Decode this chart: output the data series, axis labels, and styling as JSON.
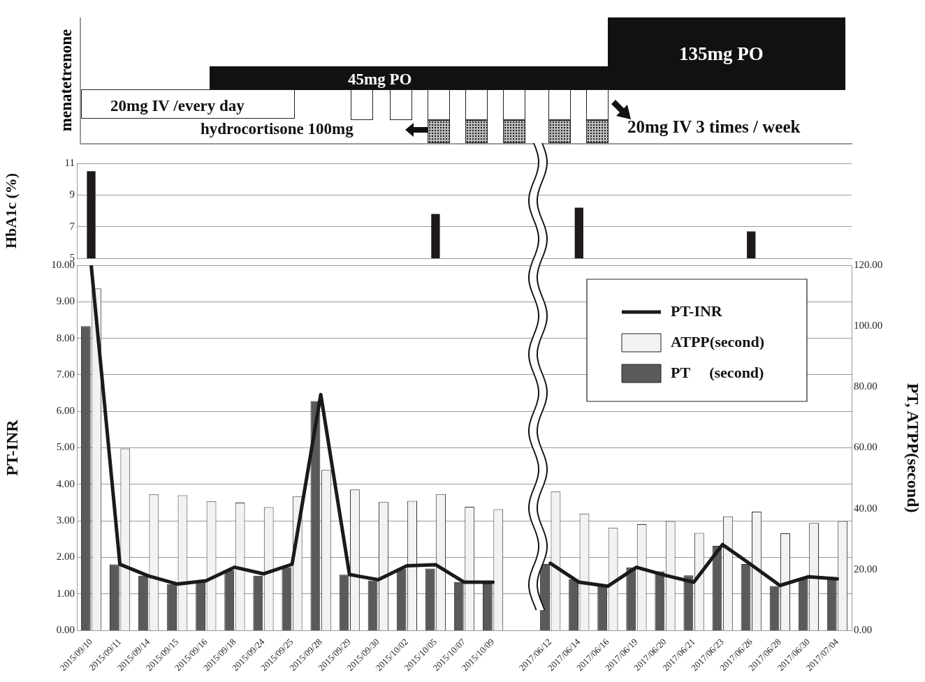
{
  "chart_data": [
    {
      "type": "other",
      "ylabel": "menatetrenone",
      "annotations": [
        "20mg IV /every day",
        "45mg PO",
        "135mg PO",
        "hydrocortisone 100mg",
        "20mg IV 3 times / week"
      ]
    },
    {
      "type": "bar",
      "ylabel": "HbA1c (%)",
      "categories": [
        "2015/09/10",
        "2015/09/11",
        "2015/09/14",
        "2015/09/15",
        "2015/09/16",
        "2015/09/18",
        "2015/09/24",
        "2015/09/25",
        "2015/09/28",
        "2015/09/29",
        "2015/09/30",
        "2015/10/02",
        "2015/10/05",
        "2015/10/07",
        "2015/10/09",
        null,
        "2017/06/12",
        "2017/06/14",
        "2017/06/16",
        "2017/06/19",
        "2017/06/20",
        "2017/06/21",
        "2017/06/23",
        "2017/06/26",
        "2017/06/28",
        "2017/06/30",
        "2017/07/04"
      ],
      "values": [
        10.5,
        null,
        null,
        null,
        null,
        null,
        null,
        null,
        null,
        null,
        null,
        null,
        7.8,
        null,
        null,
        null,
        null,
        8.2,
        null,
        null,
        null,
        null,
        null,
        6.7,
        null,
        null,
        null
      ],
      "color": "#1e1a1a",
      "ylim": [
        5,
        11
      ],
      "yticks": [
        5,
        7,
        9,
        11
      ],
      "grid": "y",
      "tick_labels": "y"
    },
    {
      "type": "bar",
      "ylabel": "PT-INR",
      "y2label": "PT, ATPP(second)",
      "categories": [
        "2015/09/10",
        "2015/09/11",
        "2015/09/14",
        "2015/09/15",
        "2015/09/16",
        "2015/09/18",
        "2015/09/24",
        "2015/09/25",
        "2015/09/28",
        "2015/09/29",
        "2015/09/30",
        "2015/10/02",
        "2015/10/05",
        "2015/10/07",
        "2015/10/09",
        null,
        "2017/06/12",
        "2017/06/14",
        "2017/06/16",
        "2017/06/19",
        "2017/06/20",
        "2017/06/21",
        "2017/06/23",
        "2017/06/26",
        "2017/06/28",
        "2017/06/30",
        "2017/07/04"
      ],
      "series": [
        {
          "name": "PT-INR",
          "type": "line",
          "color": "#1a1a1a",
          "values": [
            10.0,
            1.81,
            1.49,
            1.27,
            1.36,
            1.73,
            1.55,
            1.81,
            6.46,
            1.53,
            1.39,
            1.77,
            1.8,
            1.32,
            1.32,
            null,
            1.84,
            1.32,
            1.21,
            1.73,
            1.51,
            1.32,
            2.35,
            1.8,
            1.23,
            1.47,
            1.41
          ]
        },
        {
          "name": "ATPP(second)",
          "type": "bar",
          "axis": "y2",
          "color": "#f2f2f2",
          "values": [
            112.4,
            59.8,
            44.7,
            44.4,
            42.4,
            42.0,
            40.5,
            44.0,
            52.7,
            46.3,
            42.2,
            42.6,
            44.8,
            40.6,
            39.8,
            null,
            45.6,
            38.4,
            33.7,
            34.9,
            35.9,
            32.0,
            37.5,
            39.0,
            31.9,
            35.3,
            35.9
          ]
        },
        {
          "name": "PT     (second)",
          "type": "bar",
          "axis": "y2",
          "color": "#5a5a5a",
          "values": [
            100.0,
            21.7,
            18.0,
            15.2,
            16.4,
            19.8,
            18.0,
            20.8,
            75.4,
            18.3,
            16.4,
            20.3,
            20.3,
            15.9,
            15.4,
            null,
            21.8,
            16.8,
            15.0,
            20.7,
            19.4,
            18.1,
            27.8,
            21.8,
            14.6,
            17.2,
            16.8
          ]
        }
      ],
      "ylim": [
        0,
        10
      ],
      "yticks": [
        {
          "value": 0,
          "label": "0.00"
        },
        {
          "value": 1,
          "label": "1.00"
        },
        {
          "value": 2,
          "label": "2.00"
        },
        {
          "value": 3,
          "label": "3.00"
        },
        {
          "value": 4,
          "label": "4.00"
        },
        {
          "value": 5,
          "label": "5.00"
        },
        {
          "value": 6,
          "label": "6.00"
        },
        {
          "value": 7,
          "label": "7.00"
        },
        {
          "value": 8,
          "label": "8.00"
        },
        {
          "value": 9,
          "label": "9.00"
        },
        {
          "value": 10,
          "label": "10.00"
        }
      ],
      "y2lim": [
        0,
        120
      ],
      "y2ticks": [
        {
          "value": 0,
          "label": "0.00"
        },
        {
          "value": 20,
          "label": "20.00"
        },
        {
          "value": 40,
          "label": "40.00"
        },
        {
          "value": 60,
          "label": "60.00"
        },
        {
          "value": 80,
          "label": "80.00"
        },
        {
          "value": 100,
          "label": "100.00"
        },
        {
          "value": 120,
          "label": "120.00"
        }
      ],
      "grid": "y",
      "legend": "top right",
      "marker": "none"
    }
  ]
}
